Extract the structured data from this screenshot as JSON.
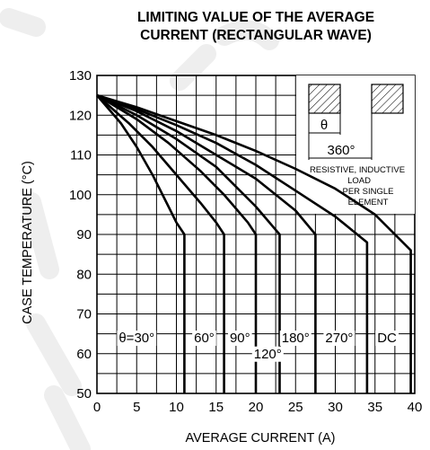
{
  "chart_data": {
    "type": "line",
    "title_lines": [
      "LIMITING VALUE OF THE AVERAGE",
      "CURRENT (RECTANGULAR WAVE)"
    ],
    "title": "LIMITING VALUE OF THE AVERAGE CURRENT (RECTANGULAR WAVE)",
    "xlabel": "AVERAGE CURRENT (A)",
    "ylabel": "CASE TEMPERATURE (°C)",
    "xlim": [
      0,
      40
    ],
    "ylim": [
      50,
      130
    ],
    "x_ticks": [
      "0",
      "5",
      "10",
      "15",
      "20",
      "25",
      "30",
      "35",
      "40"
    ],
    "y_ticks": [
      "50",
      "60",
      "70",
      "80",
      "90",
      "100",
      "110",
      "120",
      "130"
    ],
    "grid": true,
    "series": [
      {
        "name": "θ=30°",
        "x": [
          0,
          3,
          5,
          7,
          9,
          10,
          11,
          11
        ],
        "y": [
          125,
          118,
          112,
          105,
          97,
          93,
          90,
          50
        ]
      },
      {
        "name": "60°",
        "x": [
          0,
          4,
          7,
          10,
          13,
          15,
          16,
          16
        ],
        "y": [
          125,
          118,
          112,
          105,
          98,
          93,
          90,
          50
        ]
      },
      {
        "name": "90°",
        "x": [
          0,
          5,
          9,
          13,
          16,
          19,
          20,
          20
        ],
        "y": [
          125,
          119,
          113,
          106,
          100,
          93,
          90,
          50
        ]
      },
      {
        "name": "120°",
        "x": [
          0,
          5,
          10,
          15,
          20,
          23,
          23
        ],
        "y": [
          125,
          120,
          114,
          107,
          97,
          90,
          50
        ]
      },
      {
        "name": "180°",
        "x": [
          0,
          5,
          10,
          15,
          20,
          25,
          27.5,
          27.5
        ],
        "y": [
          125,
          121,
          116,
          110,
          104,
          96,
          90,
          50
        ]
      },
      {
        "name": "270°",
        "x": [
          0,
          5,
          10,
          15,
          20,
          25,
          30,
          34,
          34
        ],
        "y": [
          125,
          121.5,
          117.5,
          113,
          107.5,
          101,
          94.5,
          88,
          50
        ]
      },
      {
        "name": "DC",
        "x": [
          0,
          5,
          10,
          15,
          20,
          25,
          30,
          35,
          39.5,
          39.5
        ],
        "y": [
          125,
          122,
          118.5,
          115,
          111,
          106.5,
          101.5,
          95,
          86,
          50
        ]
      }
    ],
    "curve_labels": [
      {
        "text": "θ=30°",
        "x": 5,
        "y": 64
      },
      {
        "text": "60°",
        "x": 13.5,
        "y": 64
      },
      {
        "text": "90°",
        "x": 18,
        "y": 64
      },
      {
        "text": "180°",
        "x": 25,
        "y": 64
      },
      {
        "text": "270°",
        "x": 30.5,
        "y": 64
      },
      {
        "text": "DC",
        "x": 36.5,
        "y": 64
      },
      {
        "text": "120°",
        "x": 21.5,
        "y": 60
      }
    ],
    "inset": {
      "theta_label": "θ",
      "period_label": "360°",
      "note_lines": [
        "RESISTIVE, INDUCTIVE",
        "LOAD",
        "PER SINGLE",
        "ELEMENT"
      ]
    }
  }
}
